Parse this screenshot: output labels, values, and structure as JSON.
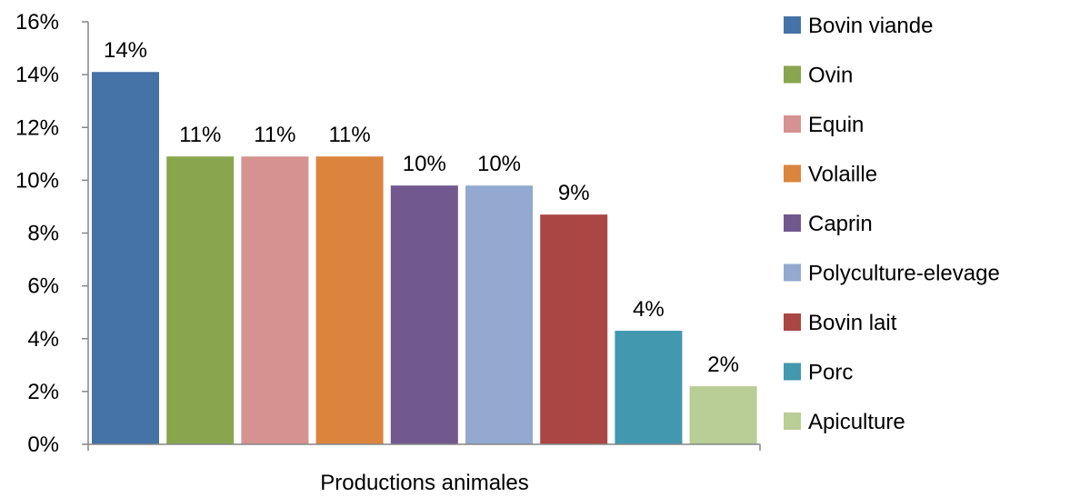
{
  "chart_data": {
    "type": "bar",
    "xlabel": "Productions animales",
    "ylabel": "",
    "ylim": [
      0,
      16
    ],
    "y_tick_labels": [
      "0%",
      "2%",
      "4%",
      "6%",
      "8%",
      "10%",
      "12%",
      "14%",
      "16%"
    ],
    "legend_position": "right",
    "grid": false,
    "series": [
      {
        "name": "Bovin viande",
        "value": 14.1,
        "label": "14%",
        "color": "#4572A7"
      },
      {
        "name": "Ovin",
        "value": 10.9,
        "label": "11%",
        "color": "#89A54E"
      },
      {
        "name": "Equin",
        "value": 10.9,
        "label": "11%",
        "color": "#D69291"
      },
      {
        "name": "Volaille",
        "value": 10.9,
        "label": "11%",
        "color": "#DB843D"
      },
      {
        "name": "Caprin",
        "value": 9.8,
        "label": "10%",
        "color": "#71588F"
      },
      {
        "name": "Polyculture-elevage",
        "value": 9.8,
        "label": "10%",
        "color": "#93A9CF"
      },
      {
        "name": "Bovin lait",
        "value": 8.7,
        "label": "9%",
        "color": "#AA4643"
      },
      {
        "name": "Porc",
        "value": 4.3,
        "label": "4%",
        "color": "#4198AF"
      },
      {
        "name": "Apiculture",
        "value": 2.2,
        "label": "2%",
        "color": "#B9CD96"
      }
    ]
  }
}
